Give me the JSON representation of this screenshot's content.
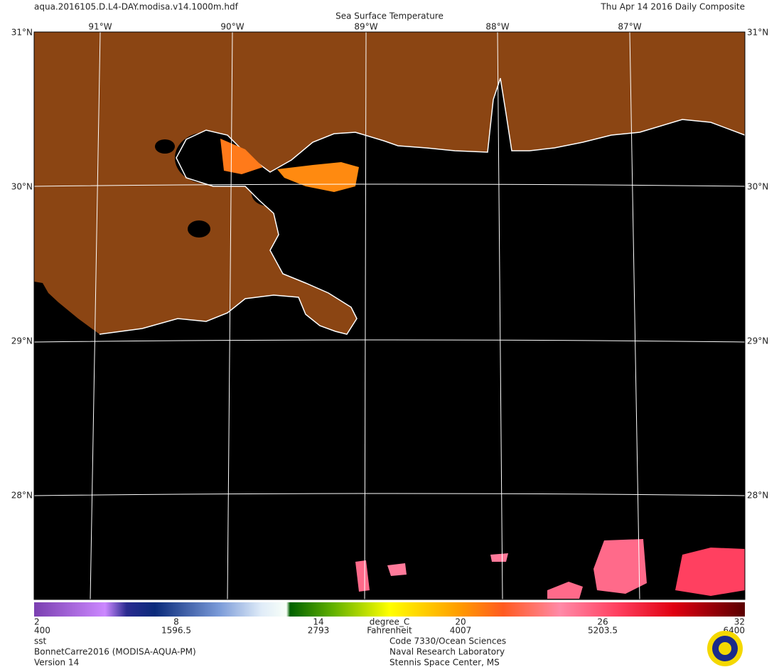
{
  "header": {
    "file": "aqua.2016105.D.L4-DAY.modisa.v14.1000m.hdf",
    "title": "Sea Surface Temperature",
    "date": "Thu Apr 14 2016 Daily Composite"
  },
  "map": {
    "longitude_labels": [
      "91°W",
      "90°W",
      "89°W",
      "88°W",
      "87°W"
    ],
    "latitude_labels": [
      "31°N",
      "30°N",
      "29°N",
      "28°N"
    ]
  },
  "colorbar": {
    "celsius_ticks": [
      "2",
      "8",
      "14",
      "20",
      "26",
      "32"
    ],
    "fahrenheit_ticks": [
      "400",
      "1596.5",
      "2793",
      "4007",
      "5203.5",
      "6400"
    ],
    "unit": "degree_C",
    "alt_unit": "Fahrenheit"
  },
  "footer": {
    "left": [
      "sst",
      "BonnetCarre2016 (MODISA-AQUA-PM)",
      "Version 14"
    ],
    "right": [
      "Code 7330/Ocean Sciences",
      "Naval Research Laboratory",
      "Stennis Space Center, MS"
    ]
  }
}
